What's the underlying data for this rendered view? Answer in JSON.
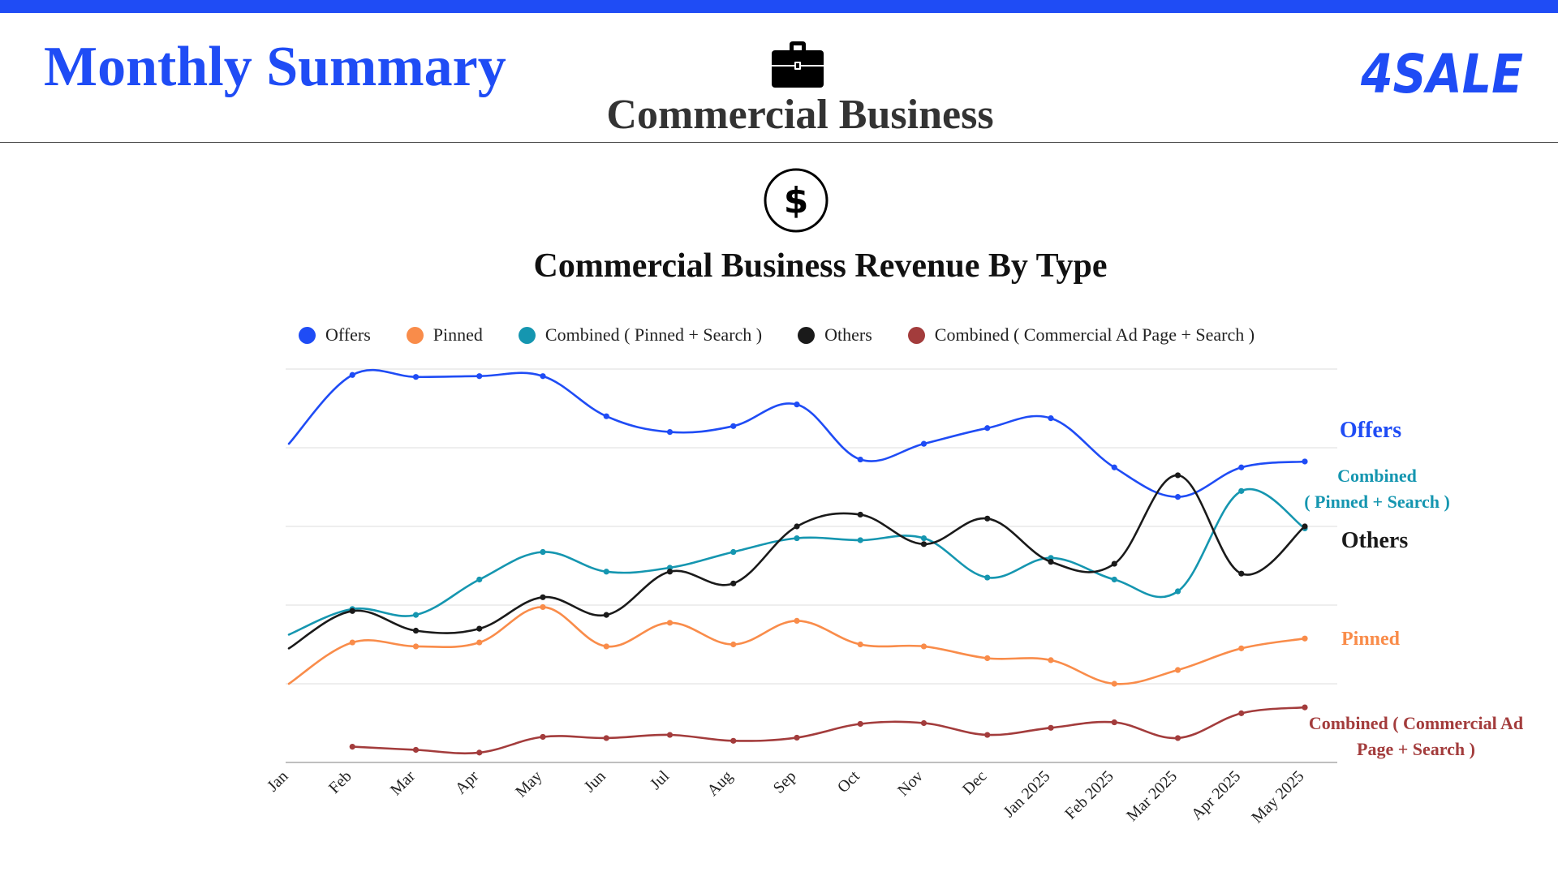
{
  "header": {
    "title": "Monthly Summary",
    "section": "Commercial Business",
    "brand": "4SALE",
    "icons": {
      "section": "briefcase-icon",
      "chart": "dollar-icon"
    },
    "colors": {
      "accent": "#1f4cf5",
      "section_text": "#333333"
    }
  },
  "chart_data": {
    "type": "line",
    "title": "Commercial Business Revenue By Type",
    "xlabel": "",
    "ylabel": "",
    "y_axis_labels_shown": false,
    "ylim": [
      0,
      100
    ],
    "grid": true,
    "legend_position": "top",
    "categories": [
      "Jan",
      "Feb",
      "Mar",
      "Apr",
      "May",
      "Jun",
      "Jul",
      "Aug",
      "Sep",
      "Oct",
      "Nov",
      "Dec",
      "Jan 2025",
      "Feb 2025",
      "Mar 2025",
      "Apr 2025",
      "May 2025"
    ],
    "series": [
      {
        "name": "Offers",
        "color": "#1f4cf5",
        "end_label": [
          "Offers"
        ],
        "values": [
          81,
          98.5,
          98,
          98.2,
          98.2,
          88,
          84,
          85.5,
          91,
          77,
          81,
          85,
          87.5,
          75,
          67.5,
          75,
          76.5
        ]
      },
      {
        "name": "Pinned",
        "color": "#f98c4a",
        "end_label": [
          "Pinned"
        ],
        "values": [
          20,
          30.5,
          29.5,
          30.5,
          39.5,
          29.5,
          35.5,
          30,
          36,
          30,
          29.5,
          26.5,
          26,
          20,
          23.5,
          29,
          31.5
        ]
      },
      {
        "name": "Combined ( Pinned + Search )",
        "color": "#1596b0",
        "end_label": [
          "Combined",
          "( Pinned + Search )"
        ],
        "values": [
          32.5,
          39,
          37.5,
          46.5,
          53.5,
          48.5,
          49.5,
          53.5,
          57,
          56.5,
          57,
          47,
          52,
          46.5,
          43.5,
          69,
          59.5
        ]
      },
      {
        "name": "Others",
        "color": "#1a1a1a",
        "end_label": [
          "Others"
        ],
        "values": [
          29,
          38.5,
          33.5,
          34,
          42,
          37.5,
          48.5,
          45.5,
          60,
          63,
          55.5,
          62,
          51,
          50.5,
          73,
          48,
          60
        ]
      },
      {
        "name": "Combined ( Commercial Ad Page + Search )",
        "color": "#a33c3c",
        "end_label": [
          "Combined ( Commercial Ad",
          "Page + Search )"
        ],
        "values": [
          null,
          4,
          3.2,
          2.5,
          6.5,
          6.2,
          7,
          5.5,
          6.3,
          9.8,
          10,
          7,
          8.8,
          10.2,
          6.2,
          12.5,
          14
        ]
      }
    ]
  }
}
